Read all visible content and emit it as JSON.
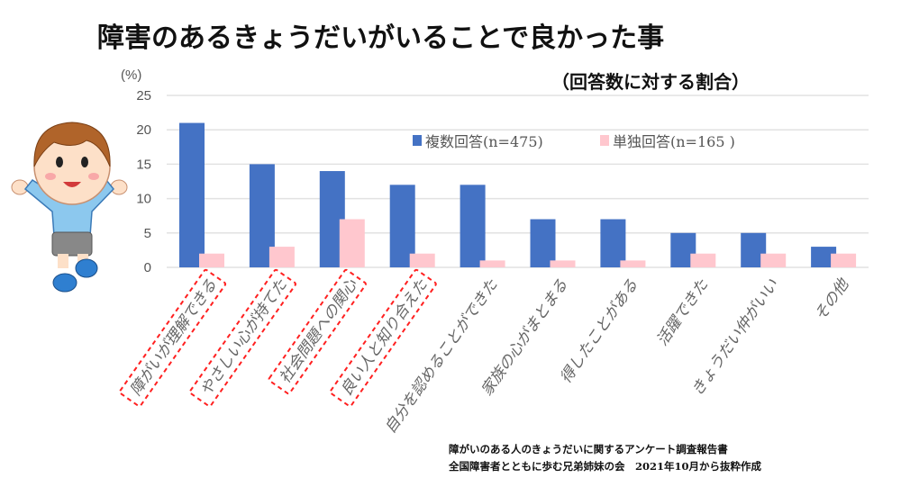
{
  "chart_data": {
    "type": "bar",
    "title": "障害のあるきょうだいがいることで良かった事",
    "subtitle": "（回答数に対する割合）",
    "ylabel": "(%)",
    "ylim": [
      0,
      25
    ],
    "yticks": [
      0,
      5,
      10,
      15,
      20,
      25
    ],
    "grid": true,
    "legend_position": "top-right",
    "categories": [
      "障がいが理解できる",
      "やさしい心が持てた",
      "社会問題への関心",
      "良い人と知り合えた",
      "自分を認めることができた",
      "家族の心がまとまる",
      "得したことがある",
      "活躍できた",
      "きょうだい仲がいい",
      "その他"
    ],
    "highlighted_categories": [
      0,
      1,
      2,
      3
    ],
    "series": [
      {
        "name": "複数回答(n=475)",
        "color": "#4472c4",
        "values": [
          21,
          15,
          14,
          12,
          12,
          7,
          7,
          5,
          5,
          3
        ]
      },
      {
        "name": "単独回答(n=165 )",
        "color": "#ffc7ce",
        "values": [
          2,
          3,
          7,
          2,
          1,
          1,
          1,
          2,
          2,
          2
        ]
      }
    ],
    "highlight_color": "#ff2020"
  },
  "source": {
    "line1": "障がいのある人のきょうだいに関するアンケート調査報告書",
    "line2": "全国障害者とともに歩む兄弟姉妹の会　2021年10月から抜粋作成"
  }
}
